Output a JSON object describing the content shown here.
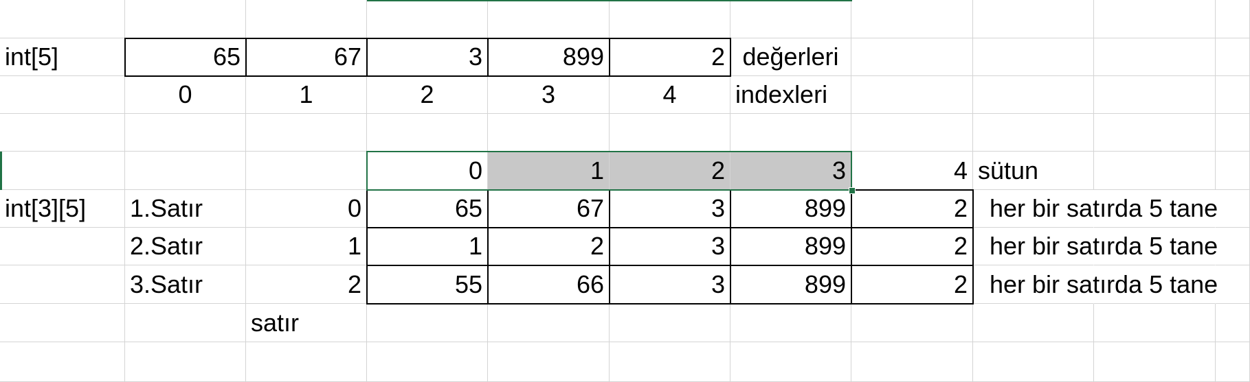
{
  "sheet": {
    "r2": {
      "label": "int[5]",
      "values": [
        "65",
        "67",
        "3",
        "899",
        "2"
      ],
      "note": "değerleri"
    },
    "r3": {
      "indexes": [
        "0",
        "1",
        "2",
        "3",
        "4"
      ],
      "note": "indexleri"
    },
    "r5": {
      "columns": [
        "0",
        "1",
        "2",
        "3",
        "4"
      ],
      "note": "sütun"
    },
    "rows": [
      {
        "label": "int[3][5]",
        "name": "1.Satır",
        "index": "0",
        "values": [
          "65",
          "67",
          "3",
          "899",
          "2"
        ],
        "note": "her bir satırda 5 tane"
      },
      {
        "label": "",
        "name": "2.Satır",
        "index": "1",
        "values": [
          "1",
          "2",
          "3",
          "899",
          "2"
        ],
        "note": "her bir satırda 5 tane"
      },
      {
        "label": "",
        "name": "3.Satır",
        "index": "2",
        "values": [
          "55",
          "66",
          "3",
          "899",
          "2"
        ],
        "note": "her bir satırda 5 tane"
      }
    ],
    "r9": {
      "label": "satır"
    }
  },
  "colors": {
    "gridline": "#d4d4d4",
    "selection": "#217346",
    "highlight": "#c8c8c8"
  }
}
